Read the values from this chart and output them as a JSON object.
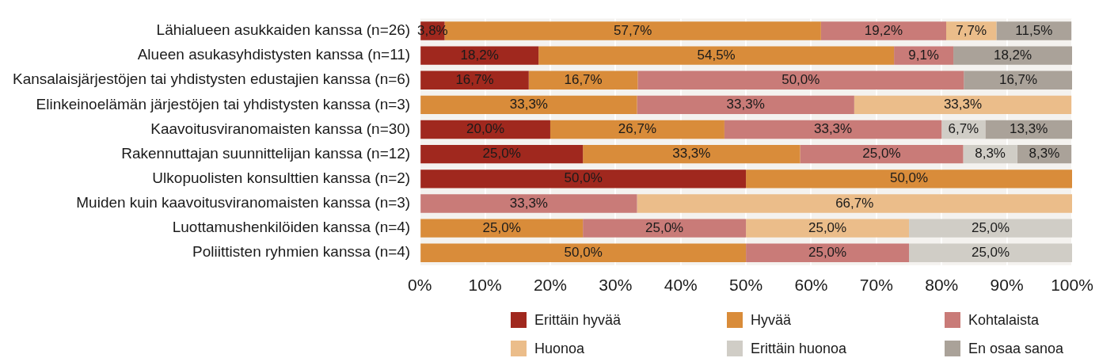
{
  "chart_data": {
    "type": "bar",
    "orientation": "horizontal",
    "stacked": true,
    "grid": "x",
    "legend": "bottom",
    "categories": [
      "Lähialueen asukkaiden kanssa (n=26)",
      "Alueen asukasyhdistysten kanssa (n=11)",
      "Kansalaisjärjestöjen tai yhdistysten edustajien kanssa (n=6)",
      "Elinkeinoelämän järjestöjen tai yhdistysten kanssa (n=3)",
      "Kaavoitusviranomaisten kanssa (n=30)",
      "Rakennuttajan suunnittelijan kanssa (n=12)",
      "Ulkopuolisten konsulttien kanssa (n=2)",
      "Muiden kuin kaavoitusviranomaisten kanssa (n=3)",
      "Luottamushenkilöiden kanssa (n=4)",
      "Poliittisten ryhmien kanssa (n=4)"
    ],
    "xlim": [
      0,
      100
    ],
    "xticks": [
      {
        "value": 0,
        "label": "0%"
      },
      {
        "value": 10,
        "label": "10%"
      },
      {
        "value": 20,
        "label": "20%"
      },
      {
        "value": 30,
        "label": "30%"
      },
      {
        "value": 40,
        "label": "40%"
      },
      {
        "value": 50,
        "label": "50%"
      },
      {
        "value": 60,
        "label": "60%"
      },
      {
        "value": 70,
        "label": "70%"
      },
      {
        "value": 80,
        "label": "80%"
      },
      {
        "value": 90,
        "label": "90%"
      },
      {
        "value": 100,
        "label": "100%"
      }
    ],
    "series": [
      {
        "name": "Erittäin hyvää",
        "color": "#a0281e",
        "values": [
          3.8,
          18.2,
          16.7,
          null,
          20.0,
          25.0,
          50.0,
          null,
          null,
          null
        ],
        "value_labels": [
          "3,8%",
          "18,2%",
          "16,7%",
          null,
          "20,0%",
          "25,0%",
          "50,0%",
          null,
          null,
          null
        ]
      },
      {
        "name": "Hyvää",
        "color": "#d98c3a",
        "values": [
          57.7,
          54.5,
          16.7,
          33.3,
          26.7,
          33.3,
          50.0,
          null,
          25.0,
          50.0
        ],
        "value_labels": [
          "57,7%",
          "54,5%",
          "16,7%",
          "33,3%",
          "26,7%",
          "33,3%",
          "50,0%",
          null,
          "25,0%",
          "50,0%"
        ]
      },
      {
        "name": "Kohtalaista",
        "color": "#c97b78",
        "values": [
          19.2,
          9.1,
          50.0,
          33.3,
          33.3,
          25.0,
          null,
          33.3,
          25.0,
          25.0
        ],
        "value_labels": [
          "19,2%",
          "9,1%",
          "50,0%",
          "33,3%",
          "33,3%",
          "25,0%",
          null,
          "33,3%",
          "25,0%",
          "25,0%"
        ]
      },
      {
        "name": "Huonoa",
        "color": "#ebbd8a",
        "values": [
          7.7,
          null,
          null,
          33.3,
          null,
          null,
          null,
          66.7,
          25.0,
          null
        ],
        "value_labels": [
          "7,7%",
          null,
          null,
          "33,3%",
          null,
          null,
          null,
          "66,7%",
          "25,0%",
          null
        ]
      },
      {
        "name": "Erittäin huonoa",
        "color": "#d0cdc6",
        "values": [
          null,
          null,
          null,
          null,
          6.7,
          8.3,
          null,
          null,
          25.0,
          25.0
        ],
        "value_labels": [
          null,
          null,
          null,
          null,
          "6,7%",
          "8,3%",
          null,
          null,
          "25,0%",
          "25,0%"
        ]
      },
      {
        "name": "En osaa sanoa",
        "color": "#aaa299",
        "values": [
          11.5,
          18.2,
          16.7,
          null,
          13.3,
          8.3,
          null,
          null,
          null,
          null
        ],
        "value_labels": [
          "11,5%",
          "18,2%",
          "16,7%",
          null,
          "13,3%",
          "8,3%",
          null,
          null,
          null,
          null
        ]
      }
    ]
  }
}
